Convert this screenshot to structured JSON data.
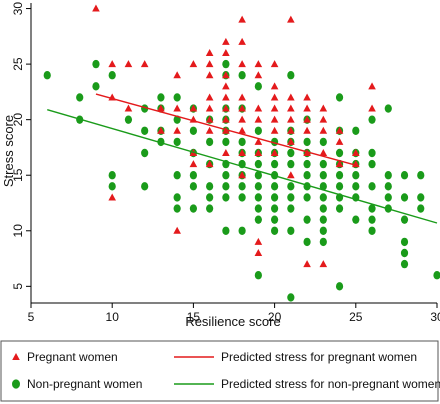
{
  "chart_data": {
    "type": "scatter",
    "title": "",
    "xlabel": "Resilience score",
    "ylabel": "Stress score",
    "xlim": [
      5,
      30
    ],
    "ylim": [
      3.5,
      30.5
    ],
    "xticks": [
      5,
      10,
      15,
      20,
      25,
      30
    ],
    "yticks": [
      5,
      10,
      15,
      20,
      25,
      30
    ],
    "xtick_labels": [
      "5",
      "10",
      "15",
      "20",
      "25",
      "30"
    ],
    "ytick_labels": [
      "5",
      "10",
      "15",
      "20",
      "25",
      "30"
    ],
    "grid": false,
    "legend_position": "bottom",
    "series": [
      {
        "name": "Pregnant women",
        "kind": "points",
        "marker": "triangle",
        "color": "#e41a1c",
        "x": [
          9,
          10,
          10,
          10,
          11,
          11,
          12,
          13,
          13,
          14,
          14,
          14,
          14,
          15,
          15,
          15,
          15,
          15,
          16,
          16,
          16,
          16,
          16,
          16,
          16,
          16,
          17,
          17,
          17,
          17,
          17,
          17,
          17,
          17,
          17,
          18,
          18,
          18,
          18,
          18,
          18,
          18,
          18,
          18,
          19,
          19,
          19,
          19,
          19,
          19,
          19,
          19,
          20,
          20,
          20,
          20,
          20,
          20,
          20,
          21,
          21,
          21,
          21,
          21,
          21,
          21,
          22,
          22,
          22,
          22,
          22,
          22,
          23,
          23,
          23,
          23,
          23,
          24,
          24,
          24,
          25,
          25,
          26,
          26
        ],
        "y": [
          30,
          25,
          22,
          13,
          25,
          21,
          25,
          21,
          19,
          24,
          21,
          19,
          10,
          25,
          21,
          20,
          17,
          16,
          26,
          25,
          24,
          22,
          21,
          20,
          19,
          16,
          27,
          26,
          24,
          23,
          22,
          21,
          20,
          19,
          17,
          29,
          27,
          25,
          22,
          21,
          20,
          19,
          17,
          15,
          25,
          24,
          21,
          20,
          18,
          17,
          9,
          8,
          25,
          23,
          22,
          21,
          20,
          19,
          17,
          29,
          22,
          21,
          20,
          19,
          18,
          15,
          22,
          21,
          20,
          19,
          17,
          7,
          21,
          20,
          19,
          17,
          7,
          19,
          18,
          16,
          17,
          16,
          23,
          21
        ]
      },
      {
        "name": "Non-pregnant women",
        "kind": "points",
        "marker": "circle",
        "color": "#1a9b1a",
        "x": [
          6,
          8,
          8,
          9,
          9,
          10,
          10,
          10,
          11,
          12,
          12,
          12,
          12,
          13,
          13,
          13,
          13,
          14,
          14,
          14,
          14,
          14,
          14,
          15,
          15,
          15,
          15,
          15,
          15,
          16,
          16,
          16,
          16,
          16,
          16,
          17,
          17,
          17,
          17,
          17,
          17,
          17,
          17,
          17,
          17,
          17,
          18,
          18,
          18,
          18,
          18,
          18,
          18,
          18,
          18,
          19,
          19,
          19,
          19,
          19,
          19,
          19,
          19,
          19,
          19,
          20,
          20,
          20,
          20,
          20,
          20,
          20,
          20,
          20,
          21,
          21,
          21,
          21,
          21,
          21,
          21,
          21,
          21,
          21,
          22,
          22,
          22,
          22,
          22,
          22,
          22,
          22,
          22,
          23,
          23,
          23,
          23,
          23,
          23,
          23,
          23,
          23,
          24,
          24,
          24,
          24,
          24,
          24,
          24,
          24,
          24,
          25,
          25,
          25,
          25,
          25,
          25,
          25,
          26,
          26,
          26,
          26,
          26,
          26,
          26,
          27,
          27,
          27,
          27,
          27,
          28,
          28,
          28,
          28,
          28,
          28,
          29,
          29,
          29,
          30
        ],
        "y": [
          24,
          22,
          20,
          25,
          23,
          24,
          15,
          14,
          20,
          21,
          19,
          17,
          14,
          22,
          21,
          19,
          18,
          22,
          20,
          18,
          15,
          13,
          12,
          21,
          19,
          17,
          15,
          14,
          12,
          20,
          18,
          16,
          14,
          13,
          12,
          25,
          24,
          21,
          20,
          19,
          18,
          16,
          15,
          14,
          13,
          10,
          24,
          21,
          18,
          17,
          16,
          15,
          14,
          13,
          10,
          23,
          19,
          17,
          16,
          15,
          14,
          13,
          12,
          11,
          6,
          18,
          17,
          16,
          15,
          14,
          13,
          12,
          11,
          10,
          24,
          19,
          18,
          17,
          16,
          14,
          13,
          12,
          10,
          4,
          20,
          18,
          17,
          16,
          15,
          14,
          13,
          11,
          9,
          18,
          16,
          15,
          14,
          13,
          12,
          11,
          10,
          9,
          22,
          19,
          17,
          16,
          15,
          14,
          13,
          12,
          5,
          19,
          17,
          16,
          15,
          14,
          13,
          11,
          20,
          17,
          16,
          14,
          12,
          11,
          10,
          21,
          15,
          14,
          13,
          12,
          15,
          13,
          11,
          9,
          8,
          7,
          15,
          13,
          12,
          6
        ]
      },
      {
        "name": "Predicted stress for pregnant women",
        "kind": "line",
        "color": "#e41a1c",
        "x": [
          9,
          25
        ],
        "y": [
          22.3,
          15.9
        ]
      },
      {
        "name": "Predicted stress for non-pregnant women",
        "kind": "line",
        "color": "#1a9b1a",
        "x": [
          6,
          30
        ],
        "y": [
          20.9,
          10.7
        ]
      }
    ]
  },
  "legend": {
    "items": [
      {
        "label": "Pregnant women",
        "symbol": "triangle",
        "color": "#e41a1c"
      },
      {
        "label": "Predicted stress for pregnant women",
        "symbol": "line",
        "color": "#e41a1c"
      },
      {
        "label": "Non-pregnant women",
        "symbol": "circle",
        "color": "#1a9b1a"
      },
      {
        "label": "Predicted stress for non-pregnant women",
        "symbol": "line",
        "color": "#1a9b1a"
      }
    ]
  }
}
